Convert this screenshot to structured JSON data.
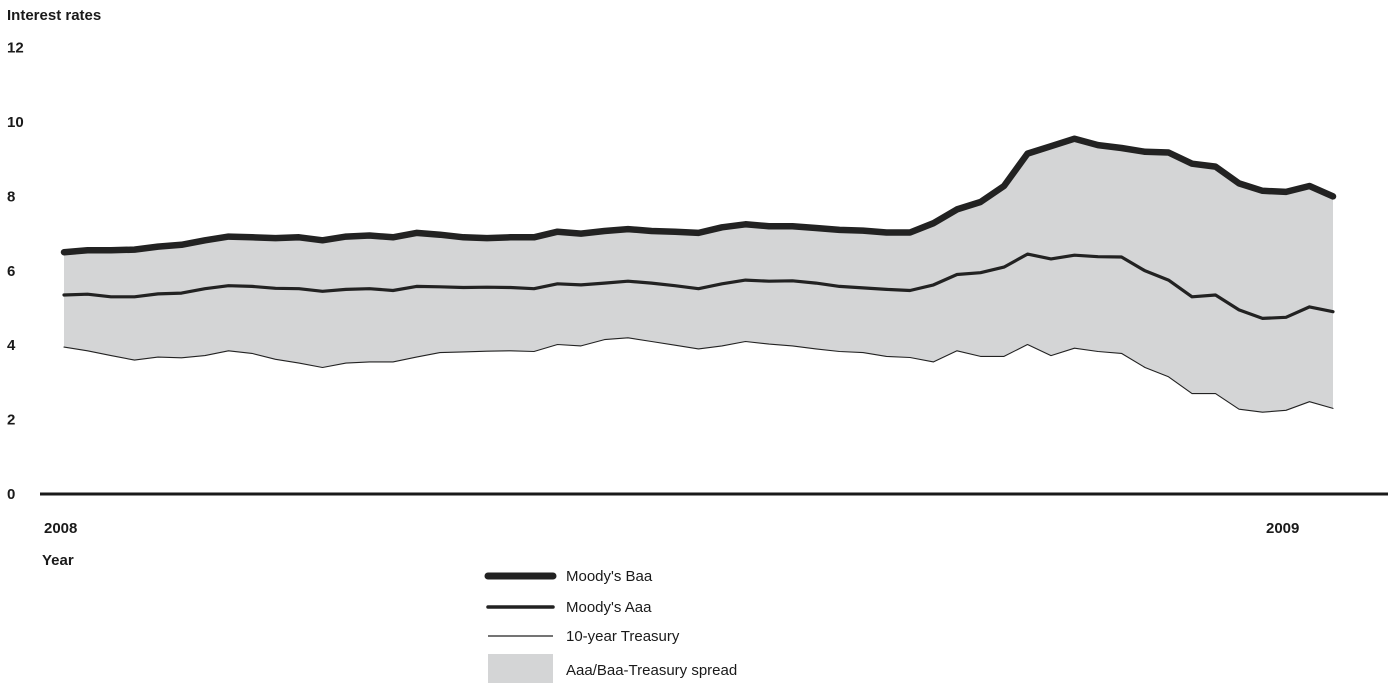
{
  "chart_data": {
    "type": "line",
    "ylabel": "Interest rates",
    "xlabel": "Year",
    "ylim": [
      0,
      12
    ],
    "yticks": [
      0,
      2,
      4,
      6,
      8,
      10,
      12
    ],
    "x_tick_labels": [
      {
        "label": "2008",
        "index": 0
      },
      {
        "label": "2009",
        "index": 52
      }
    ],
    "grid": false,
    "legend_position": "bottom-center",
    "series": [
      {
        "name": "Moody's Baa",
        "style": "thick",
        "color": "#222222",
        "values": [
          6.5,
          6.55,
          6.55,
          6.57,
          6.65,
          6.7,
          6.82,
          6.92,
          6.9,
          6.88,
          6.9,
          6.82,
          6.92,
          6.95,
          6.9,
          7.02,
          6.97,
          6.9,
          6.88,
          6.9,
          6.9,
          7.05,
          7.0,
          7.07,
          7.12,
          7.07,
          7.05,
          7.02,
          7.17,
          7.25,
          7.2,
          7.2,
          7.15,
          7.1,
          7.08,
          7.03,
          7.03,
          7.28,
          7.65,
          7.85,
          8.28,
          9.15,
          9.35,
          9.55,
          9.38,
          9.3,
          9.2,
          9.18,
          8.88,
          8.8,
          8.35,
          8.15,
          8.12,
          8.28,
          8.0
        ]
      },
      {
        "name": "Moody's Aaa",
        "style": "medium",
        "color": "#222222",
        "values": [
          5.35,
          5.37,
          5.3,
          5.3,
          5.38,
          5.4,
          5.52,
          5.6,
          5.58,
          5.53,
          5.52,
          5.45,
          5.5,
          5.52,
          5.47,
          5.58,
          5.57,
          5.55,
          5.56,
          5.55,
          5.52,
          5.65,
          5.62,
          5.67,
          5.72,
          5.67,
          5.6,
          5.52,
          5.65,
          5.75,
          5.72,
          5.73,
          5.67,
          5.58,
          5.54,
          5.5,
          5.47,
          5.62,
          5.9,
          5.95,
          6.1,
          6.45,
          6.32,
          6.42,
          6.38,
          6.37,
          6.0,
          5.75,
          5.3,
          5.35,
          4.95,
          4.72,
          4.75,
          5.03,
          4.9
        ]
      },
      {
        "name": "10-year Treasury",
        "style": "thin",
        "color": "#222222",
        "values": [
          3.95,
          3.85,
          3.72,
          3.6,
          3.68,
          3.66,
          3.72,
          3.85,
          3.78,
          3.62,
          3.52,
          3.4,
          3.52,
          3.55,
          3.55,
          3.68,
          3.8,
          3.82,
          3.84,
          3.85,
          3.83,
          4.02,
          3.98,
          4.15,
          4.2,
          4.1,
          4.0,
          3.9,
          3.98,
          4.1,
          4.03,
          3.98,
          3.9,
          3.83,
          3.8,
          3.7,
          3.67,
          3.55,
          3.85,
          3.7,
          3.7,
          4.02,
          3.72,
          3.92,
          3.83,
          3.78,
          3.4,
          3.15,
          2.7,
          2.7,
          2.28,
          2.2,
          2.25,
          2.48,
          2.3
        ]
      }
    ],
    "fill": {
      "name": "Aaa/Baa-Treasury spread",
      "color": "#d4d5d6",
      "from": "10-year Treasury",
      "to": "Moody's Baa"
    }
  }
}
